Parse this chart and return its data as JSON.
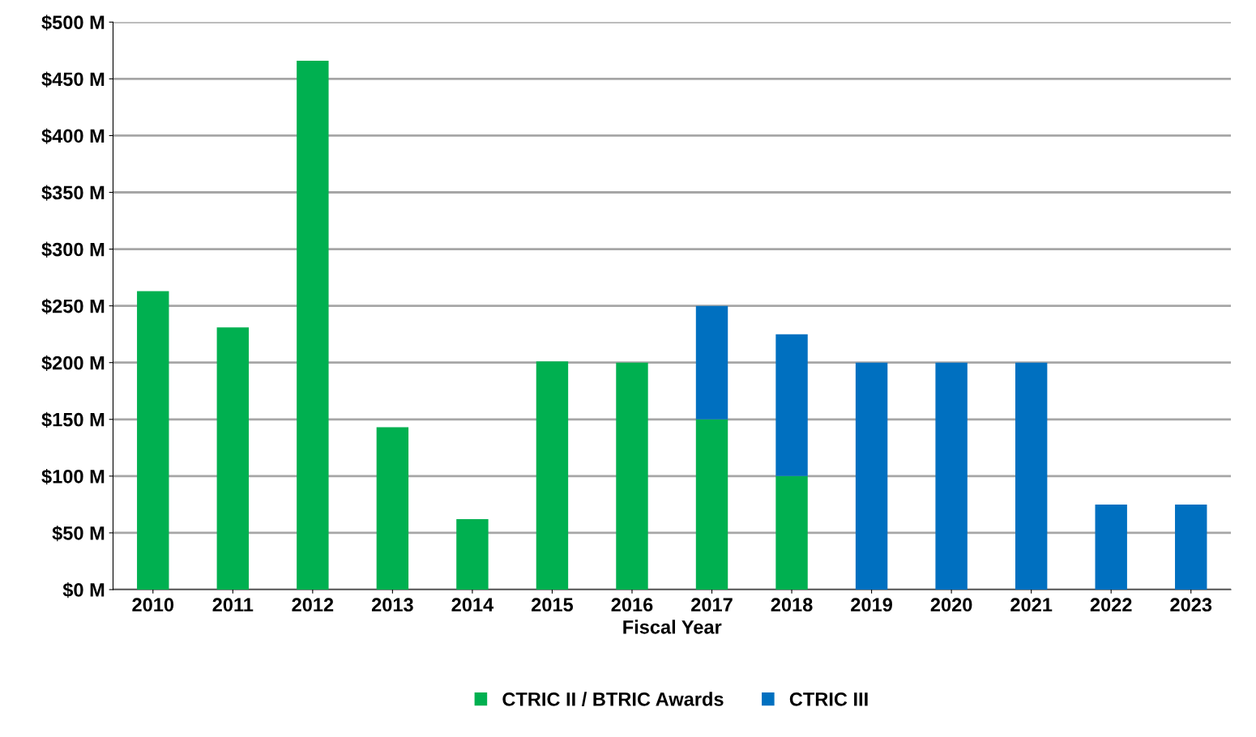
{
  "chart_data": {
    "type": "bar",
    "stacked": true,
    "xlabel": "Fiscal Year",
    "categories": [
      "2010",
      "2011",
      "2012",
      "2013",
      "2014",
      "2015",
      "2016",
      "2017",
      "2018",
      "2019",
      "2020",
      "2021",
      "2022",
      "2023"
    ],
    "series": [
      {
        "name": "CTRIC II / BTRIC Awards",
        "color": "#00b050",
        "values": [
          263,
          231,
          466,
          143,
          62,
          201,
          200,
          150,
          100,
          0,
          0,
          0,
          0,
          0
        ]
      },
      {
        "name": "CTRIC III",
        "color": "#0070c0",
        "values": [
          0,
          0,
          0,
          0,
          0,
          0,
          0,
          100,
          125,
          200,
          200,
          200,
          75,
          75
        ]
      }
    ],
    "ylim": [
      0,
      500
    ],
    "yticks": [
      {
        "value": 0,
        "label": "$0 M"
      },
      {
        "value": 50,
        "label": "$50 M"
      },
      {
        "value": 100,
        "label": "$100 M"
      },
      {
        "value": 150,
        "label": "$150 M"
      },
      {
        "value": 200,
        "label": "$200 M"
      },
      {
        "value": 250,
        "label": "$250 M"
      },
      {
        "value": 300,
        "label": "$300 M"
      },
      {
        "value": 350,
        "label": "$350 M"
      },
      {
        "value": 400,
        "label": "$400 M"
      },
      {
        "value": 450,
        "label": "$450 M"
      },
      {
        "value": 500,
        "label": "$500 M"
      }
    ],
    "grid": "y",
    "legend": "bottom"
  }
}
